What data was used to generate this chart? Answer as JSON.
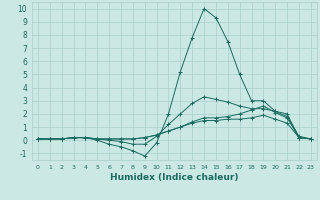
{
  "xlabel": "Humidex (Indice chaleur)",
  "x": [
    0,
    1,
    2,
    3,
    4,
    5,
    6,
    7,
    8,
    9,
    10,
    11,
    12,
    13,
    14,
    15,
    16,
    17,
    18,
    19,
    20,
    21,
    22,
    23
  ],
  "lines": [
    [
      0.1,
      0.1,
      0.1,
      0.2,
      0.2,
      0.0,
      -0.3,
      -0.5,
      -0.8,
      -1.2,
      -0.2,
      2.0,
      5.2,
      7.8,
      10.0,
      9.3,
      7.5,
      5.0,
      3.0,
      3.0,
      2.2,
      2.0,
      0.2,
      0.1
    ],
    [
      0.1,
      0.1,
      0.1,
      0.2,
      0.2,
      0.1,
      0.0,
      -0.1,
      -0.3,
      -0.3,
      0.3,
      1.2,
      2.0,
      2.8,
      3.3,
      3.1,
      2.9,
      2.6,
      2.4,
      2.4,
      2.2,
      1.8,
      0.3,
      0.1
    ],
    [
      0.1,
      0.1,
      0.1,
      0.2,
      0.2,
      0.1,
      0.1,
      0.1,
      0.1,
      0.2,
      0.4,
      0.7,
      1.0,
      1.3,
      1.5,
      1.5,
      1.6,
      1.6,
      1.7,
      1.9,
      1.6,
      1.3,
      0.2,
      0.1
    ],
    [
      0.1,
      0.1,
      0.1,
      0.2,
      0.2,
      0.1,
      0.1,
      0.1,
      0.1,
      0.2,
      0.4,
      0.7,
      1.0,
      1.4,
      1.7,
      1.7,
      1.8,
      2.0,
      2.3,
      2.6,
      2.1,
      1.7,
      0.2,
      0.1
    ]
  ],
  "line_color": "#1a6b60",
  "bg_color": "#cce8e5",
  "grid_color": "#aacfcc",
  "ylim": [
    -1.5,
    10.5
  ],
  "xlim": [
    -0.5,
    23.5
  ],
  "yticks": [
    -1,
    0,
    1,
    2,
    3,
    4,
    5,
    6,
    7,
    8,
    9,
    10
  ],
  "xticks": [
    0,
    1,
    2,
    3,
    4,
    5,
    6,
    7,
    8,
    9,
    10,
    11,
    12,
    13,
    14,
    15,
    16,
    17,
    18,
    19,
    20,
    21,
    22,
    23
  ]
}
